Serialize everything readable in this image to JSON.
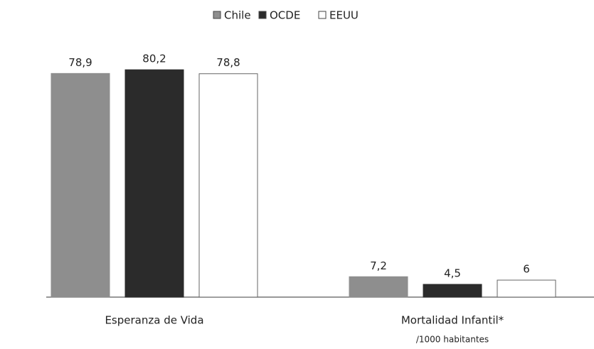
{
  "chart_data": {
    "type": "bar",
    "categories": [
      "Esperanza de Vida",
      "Mortalidad Infantil*"
    ],
    "x_annotation": "/1000 habitantes",
    "series": [
      {
        "name": "Chile",
        "color": "#8e8e8e",
        "values": [
          78.9,
          7.2
        ],
        "value_labels": [
          "78,9",
          "7,2"
        ]
      },
      {
        "name": "OCDE",
        "color": "#2b2b2b",
        "values": [
          80.2,
          4.5
        ],
        "value_labels": [
          "80,2",
          "4,5"
        ]
      },
      {
        "name": "EEUU",
        "color": "#ffffff",
        "values": [
          78.8,
          6
        ],
        "value_labels": [
          "78,8",
          "6"
        ]
      }
    ],
    "ylim": [
      0,
      85
    ],
    "legend": "top"
  }
}
